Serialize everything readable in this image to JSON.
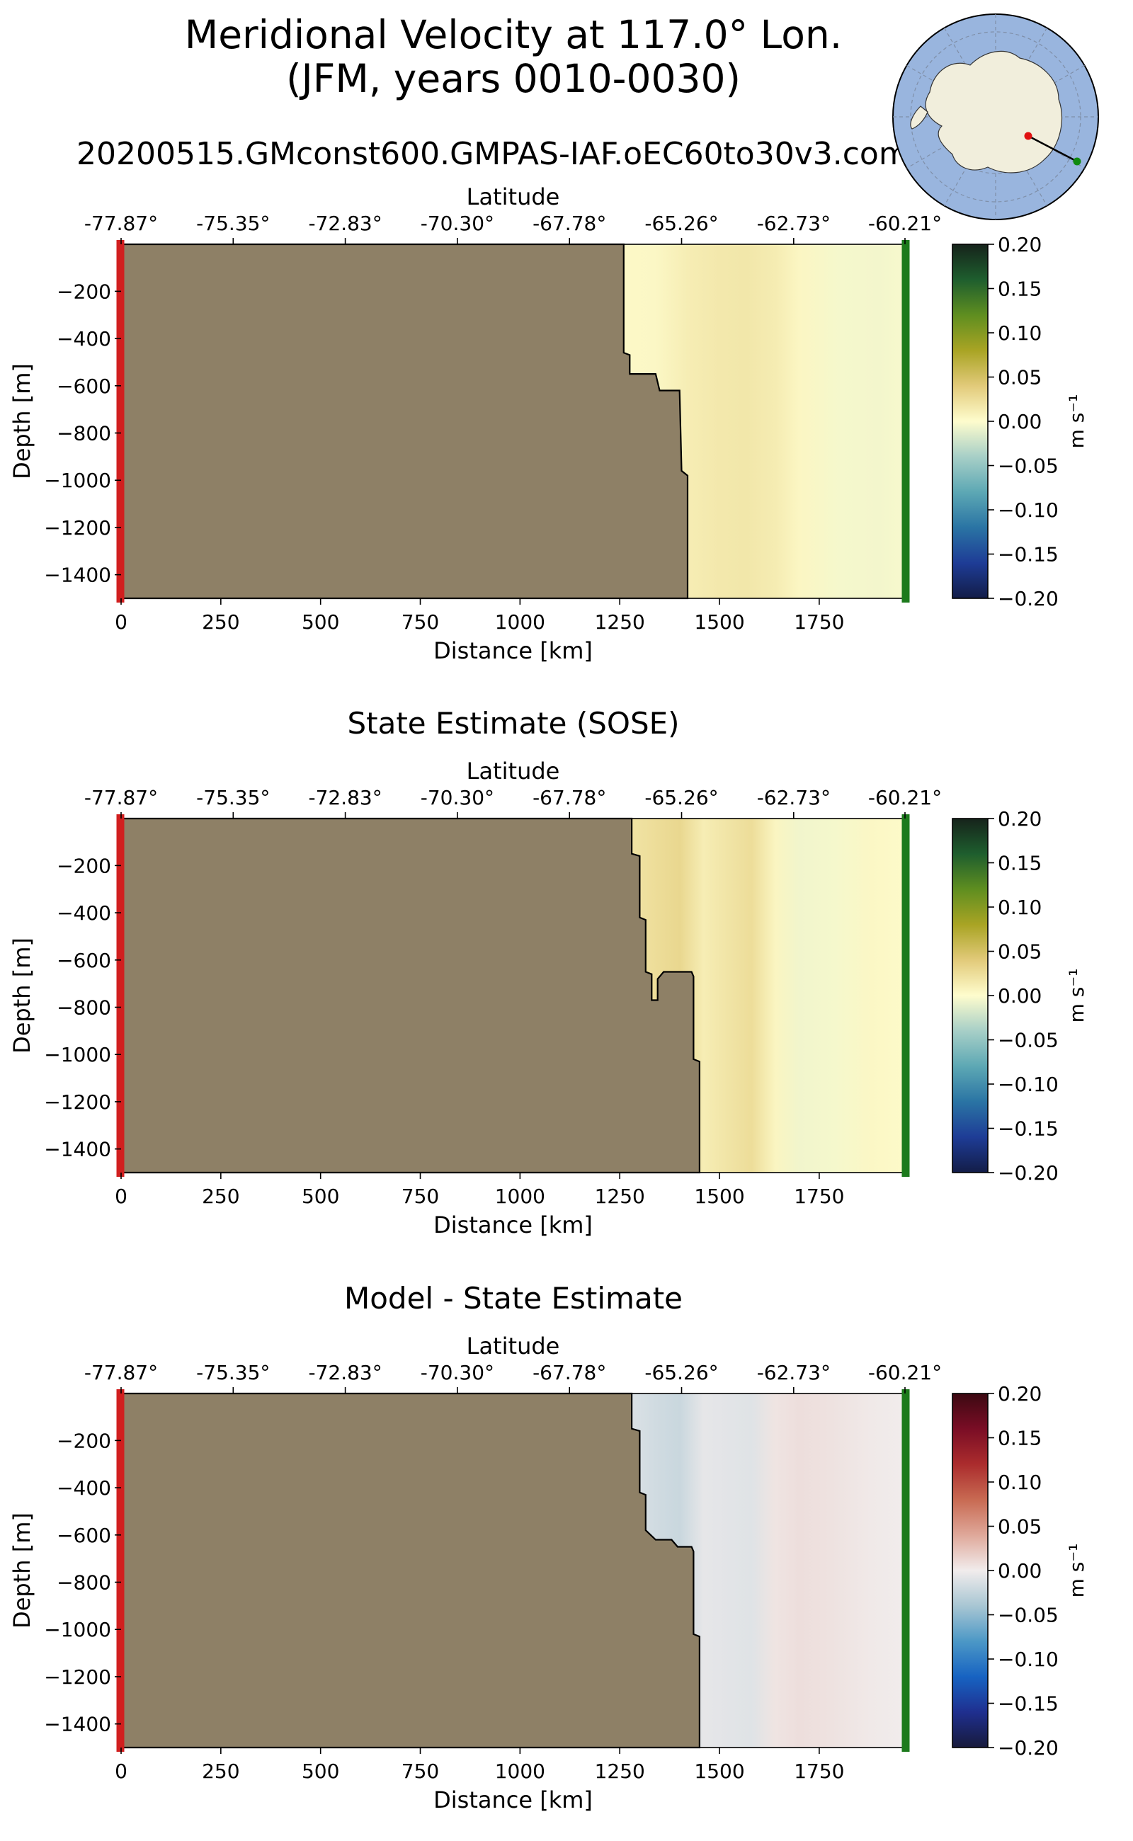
{
  "figure": {
    "title_line1": "Meridional Velocity at 117.0° Lon.",
    "title_line2": "(JFM, years 0010-0030)",
    "run_name": "20200515.GMconst600.GMPAS-IAF.oEC60to30v3.com"
  },
  "colors": {
    "land": "#8E8066",
    "left_marker": "#d11f1f",
    "right_marker": "#1c7a1c",
    "map_ocean": "#99b5de",
    "map_land": "#f1eedc"
  },
  "chart_data": [
    {
      "type": "heatmap",
      "panel": "model",
      "title": "",
      "xlabel": "Distance [km]",
      "ylabel": "Depth [m]",
      "top_axis_label": "Latitude",
      "xlim": [
        0,
        1965
      ],
      "ylim": [
        -1500,
        -1
      ],
      "xticks": [
        0,
        250,
        500,
        750,
        1000,
        1250,
        1500,
        1750
      ],
      "xtick_labels": [
        "0",
        "250",
        "500",
        "750",
        "1000",
        "1250",
        "1500",
        "1750"
      ],
      "yticks": [
        -200,
        -400,
        -600,
        -800,
        -1000,
        -1200,
        -1400
      ],
      "ytick_labels": [
        "−200",
        "−400",
        "−600",
        "−800",
        "−1000",
        "−1200",
        "−1400"
      ],
      "lat_ticks": [
        0,
        281,
        562,
        843,
        1124,
        1405,
        1686,
        1965
      ],
      "lat_labels": [
        "-77.87°",
        "-75.35°",
        "-72.83°",
        "-70.30°",
        "-67.78°",
        "-65.26°",
        "-62.73°",
        "-60.21°"
      ],
      "colorbar": {
        "cmap": "cmo.delta",
        "min": -0.2,
        "max": 0.2,
        "ticks": [
          0.2,
          0.15,
          0.1,
          0.05,
          0.0,
          -0.05,
          -0.1,
          -0.15,
          -0.2
        ],
        "tick_labels": [
          "0.20",
          "0.15",
          "0.10",
          "0.05",
          "0.00",
          "−0.05",
          "−0.10",
          "−0.15",
          "−0.20"
        ],
        "label": "m s⁻¹"
      },
      "bathymetry": [
        [
          0,
          -1
        ],
        [
          1260,
          -1
        ],
        [
          1260,
          -460
        ],
        [
          1275,
          -470
        ],
        [
          1275,
          -550
        ],
        [
          1340,
          -550
        ],
        [
          1350,
          -620
        ],
        [
          1400,
          -620
        ],
        [
          1405,
          -960
        ],
        [
          1420,
          -980
        ],
        [
          1420,
          -1500
        ],
        [
          0,
          -1500
        ]
      ],
      "field_columns": [
        {
          "x": 1260,
          "v": 0.003
        },
        {
          "x": 1340,
          "v": 0.004
        },
        {
          "x": 1420,
          "v": 0.012
        },
        {
          "x": 1500,
          "v": 0.016
        },
        {
          "x": 1570,
          "v": 0.017
        },
        {
          "x": 1640,
          "v": 0.013
        },
        {
          "x": 1700,
          "v": 0.005
        },
        {
          "x": 1800,
          "v": -0.004
        },
        {
          "x": 1900,
          "v": -0.005
        },
        {
          "x": 1965,
          "v": -0.003
        }
      ]
    },
    {
      "type": "heatmap",
      "panel": "state_estimate",
      "title": "State Estimate (SOSE)",
      "xlabel": "Distance [km]",
      "ylabel": "Depth [m]",
      "top_axis_label": "Latitude",
      "xlim": [
        0,
        1965
      ],
      "ylim": [
        -1500,
        -1
      ],
      "xticks": [
        0,
        250,
        500,
        750,
        1000,
        1250,
        1500,
        1750
      ],
      "xtick_labels": [
        "0",
        "250",
        "500",
        "750",
        "1000",
        "1250",
        "1500",
        "1750"
      ],
      "yticks": [
        -200,
        -400,
        -600,
        -800,
        -1000,
        -1200,
        -1400
      ],
      "ytick_labels": [
        "−200",
        "−400",
        "−600",
        "−800",
        "−1000",
        "−1200",
        "−1400"
      ],
      "lat_ticks": [
        0,
        281,
        562,
        843,
        1124,
        1405,
        1686,
        1965
      ],
      "lat_labels": [
        "-77.87°",
        "-75.35°",
        "-72.83°",
        "-70.30°",
        "-67.78°",
        "-65.26°",
        "-62.73°",
        "-60.21°"
      ],
      "colorbar": {
        "cmap": "cmo.delta",
        "min": -0.2,
        "max": 0.2,
        "ticks": [
          0.2,
          0.15,
          0.1,
          0.05,
          0.0,
          -0.05,
          -0.1,
          -0.15,
          -0.2
        ],
        "tick_labels": [
          "0.20",
          "0.15",
          "0.10",
          "0.05",
          "0.00",
          "−0.05",
          "−0.10",
          "−0.15",
          "−0.20"
        ],
        "label": "m s⁻¹"
      },
      "bathymetry": [
        [
          0,
          -1
        ],
        [
          1280,
          -1
        ],
        [
          1280,
          -150
        ],
        [
          1300,
          -160
        ],
        [
          1300,
          -420
        ],
        [
          1315,
          -430
        ],
        [
          1315,
          -650
        ],
        [
          1330,
          -660
        ],
        [
          1330,
          -770
        ],
        [
          1345,
          -770
        ],
        [
          1345,
          -680
        ],
        [
          1360,
          -650
        ],
        [
          1430,
          -650
        ],
        [
          1435,
          -670
        ],
        [
          1435,
          -1020
        ],
        [
          1450,
          -1030
        ],
        [
          1450,
          -1500
        ],
        [
          0,
          -1500
        ]
      ],
      "field_columns": [
        {
          "x": 1280,
          "v": 0.02
        },
        {
          "x": 1340,
          "v": 0.025
        },
        {
          "x": 1400,
          "v": 0.03
        },
        {
          "x": 1460,
          "v": 0.012
        },
        {
          "x": 1530,
          "v": 0.02
        },
        {
          "x": 1580,
          "v": 0.025
        },
        {
          "x": 1640,
          "v": 0.006
        },
        {
          "x": 1700,
          "v": -0.006
        },
        {
          "x": 1790,
          "v": -0.004
        },
        {
          "x": 1880,
          "v": 0.004
        },
        {
          "x": 1965,
          "v": 0.002
        }
      ]
    },
    {
      "type": "heatmap",
      "panel": "difference",
      "title": "Model - State Estimate",
      "xlabel": "Distance [km]",
      "ylabel": "Depth [m]",
      "top_axis_label": "Latitude",
      "xlim": [
        0,
        1965
      ],
      "ylim": [
        -1500,
        -1
      ],
      "xticks": [
        0,
        250,
        500,
        750,
        1000,
        1250,
        1500,
        1750
      ],
      "xtick_labels": [
        "0",
        "250",
        "500",
        "750",
        "1000",
        "1250",
        "1500",
        "1750"
      ],
      "yticks": [
        -200,
        -400,
        -600,
        -800,
        -1000,
        -1200,
        -1400
      ],
      "ytick_labels": [
        "−200",
        "−400",
        "−600",
        "−800",
        "−1000",
        "−1200",
        "−1400"
      ],
      "lat_ticks": [
        0,
        281,
        562,
        843,
        1124,
        1405,
        1686,
        1965
      ],
      "lat_labels": [
        "-77.87°",
        "-75.35°",
        "-72.83°",
        "-70.30°",
        "-67.78°",
        "-65.26°",
        "-62.73°",
        "-60.21°"
      ],
      "colorbar": {
        "cmap": "cmo.balance",
        "min": -0.2,
        "max": 0.2,
        "ticks": [
          0.2,
          0.15,
          0.1,
          0.05,
          0.0,
          -0.05,
          -0.1,
          -0.15,
          -0.2
        ],
        "tick_labels": [
          "0.20",
          "0.15",
          "0.10",
          "0.05",
          "0.00",
          "−0.05",
          "−0.10",
          "−0.15",
          "−0.20"
        ],
        "label": "m s⁻¹"
      },
      "bathymetry": [
        [
          0,
          -1
        ],
        [
          1280,
          -1
        ],
        [
          1280,
          -150
        ],
        [
          1300,
          -160
        ],
        [
          1300,
          -420
        ],
        [
          1315,
          -430
        ],
        [
          1315,
          -580
        ],
        [
          1340,
          -620
        ],
        [
          1380,
          -620
        ],
        [
          1395,
          -650
        ],
        [
          1430,
          -650
        ],
        [
          1435,
          -670
        ],
        [
          1435,
          -1020
        ],
        [
          1450,
          -1030
        ],
        [
          1450,
          -1500
        ],
        [
          0,
          -1500
        ]
      ],
      "field_columns": [
        {
          "x": 1280,
          "v": -0.012
        },
        {
          "x": 1340,
          "v": -0.018
        },
        {
          "x": 1400,
          "v": -0.022
        },
        {
          "x": 1460,
          "v": -0.006
        },
        {
          "x": 1530,
          "v": -0.008
        },
        {
          "x": 1580,
          "v": -0.01
        },
        {
          "x": 1640,
          "v": 0.005
        },
        {
          "x": 1700,
          "v": 0.008
        },
        {
          "x": 1780,
          "v": 0.006
        },
        {
          "x": 1880,
          "v": 0.002
        },
        {
          "x": 1965,
          "v": 0.0
        }
      ]
    }
  ]
}
